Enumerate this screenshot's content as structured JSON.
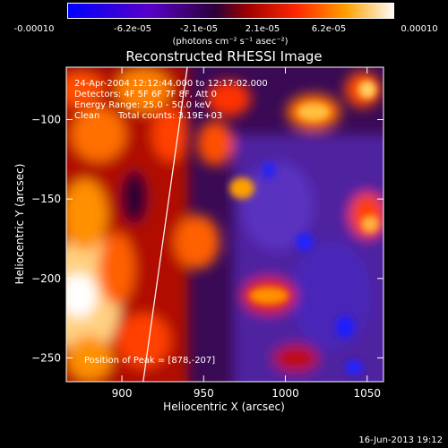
{
  "colorbar": {
    "tick_labels": [
      "-0.00010",
      "-6.2e-05",
      "-2.1e-05",
      "2.1e-05",
      "6.2e-05",
      "0.00010"
    ],
    "unit_label": "(photons cm⁻² s⁻¹ asec⁻²)",
    "range": [
      -0.0001,
      0.0001
    ]
  },
  "chart_data": {
    "type": "heatmap",
    "title": "Reconstructed RHESSI Image",
    "xlabel": "Heliocentric X (arcsec)",
    "ylabel": "Heliocentric Y (arcsec)",
    "xlim": [
      866,
      1060
    ],
    "ylim": [
      -265,
      -67
    ],
    "x_ticks": [
      900,
      950,
      1000,
      1050
    ],
    "y_ticks": [
      -100,
      -150,
      -200,
      -250
    ],
    "annotations": [
      "24-Apr-2004 12:12:44.000 to 12:17:02.000",
      "Detectors: 4F 5F 6F 7F 8F, Att 0",
      "Energy Range: 25.0 - 50.0 keV",
      "Clean",
      "Total counts: 3.19E+03",
      "Position of Peak = [878,-207]"
    ],
    "limb_line": [
      [
        940,
        -67
      ],
      [
        913,
        -265
      ]
    ],
    "peak": [
      878,
      -207
    ]
  },
  "footer": "16-Jun-2013 19:12"
}
